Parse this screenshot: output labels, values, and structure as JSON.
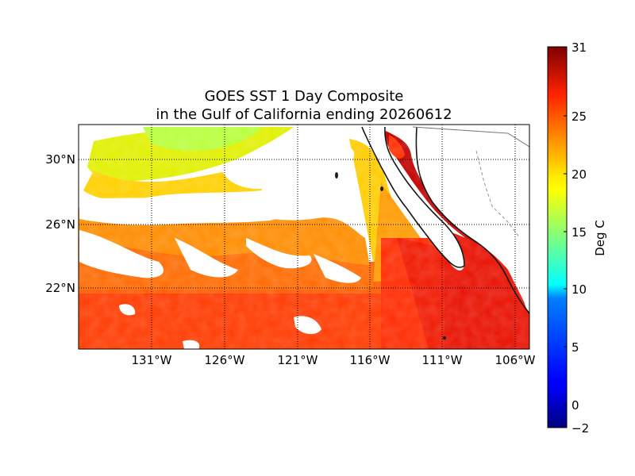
{
  "title_line1": "GOES SST 1 Day Composite",
  "title_line2": "in the Gulf of California ending 20260612",
  "map": {
    "lon_ticks": [
      "131°W",
      "126°W",
      "121°W",
      "116°W",
      "111°W",
      "106°W"
    ],
    "lat_ticks": [
      "30°N",
      "26°N",
      "22°N"
    ]
  },
  "colorbar": {
    "label": "Deg C",
    "ticks": [
      "31",
      "25",
      "20",
      "15",
      "10",
      "5",
      "0",
      "−2"
    ],
    "colormap": "jet",
    "range": [
      -2,
      31
    ]
  }
}
